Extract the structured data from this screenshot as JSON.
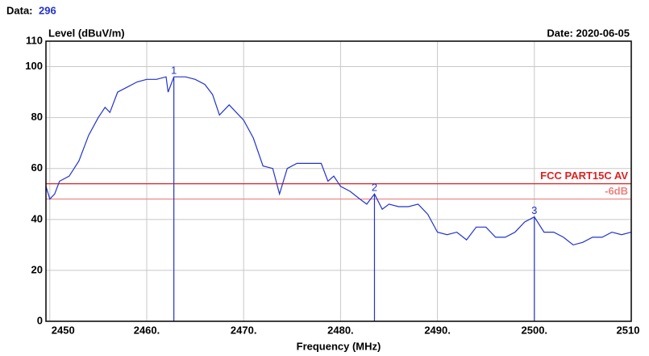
{
  "chart_data": {
    "type": "line",
    "header_label": "Data:",
    "header_value": "296",
    "ylabel": "Level (dBuV/m)",
    "date": "Date: 2020-06-05",
    "xlabel": "Frequency (MHz)",
    "xlim": [
      2449.6,
      2510
    ],
    "xticks": [
      2450,
      {
        "value": 2460,
        "label": "2460."
      },
      {
        "value": 2470,
        "label": "2470."
      },
      {
        "value": 2480,
        "label": "2480."
      },
      {
        "value": 2490,
        "label": "2490."
      },
      {
        "value": 2500,
        "label": "2500."
      },
      2510
    ],
    "ylim": [
      0,
      110
    ],
    "yticks": [
      0,
      20,
      40,
      60,
      80,
      100,
      110
    ],
    "grid": true,
    "x": [
      2449.6,
      2450,
      2450.5,
      2451,
      2452,
      2453,
      2454,
      2455,
      2455.7,
      2456.2,
      2457,
      2458,
      2459,
      2460,
      2461,
      2462,
      2462.2,
      2462.8,
      2464,
      2465,
      2466,
      2466.8,
      2467.5,
      2468.5,
      2470,
      2471,
      2472,
      2473,
      2473.7,
      2474.5,
      2475.5,
      2477,
      2478,
      2478.7,
      2479.3,
      2480,
      2481,
      2482,
      2482.7,
      2483.5,
      2484.3,
      2485,
      2486,
      2487,
      2488,
      2489,
      2490,
      2491,
      2492,
      2493,
      2494,
      2495,
      2496,
      2497,
      2498,
      2499,
      2500,
      2501,
      2502,
      2503,
      2504,
      2505,
      2506,
      2507,
      2508,
      2509,
      2510
    ],
    "series": [
      {
        "color": "#2233cc",
        "values": [
          53,
          48,
          50,
          55,
          57,
          63,
          73,
          80,
          84,
          82,
          90,
          92,
          94,
          95,
          95,
          96,
          90,
          96,
          96,
          95,
          93,
          89,
          81,
          85,
          79,
          72,
          61,
          60,
          50,
          60,
          62,
          62,
          62,
          55,
          57,
          53,
          51,
          48,
          46,
          50,
          44,
          46,
          45,
          45,
          46,
          42,
          35,
          34,
          35,
          32,
          37,
          37,
          33,
          33,
          35,
          39,
          41,
          35,
          35,
          33,
          30,
          31,
          33,
          33,
          35,
          34,
          35
        ]
      }
    ],
    "markers": [
      {
        "label": "1",
        "x": 2462.8,
        "value": 96
      },
      {
        "label": "2",
        "x": 2483.5,
        "value": 50
      },
      {
        "label": "3",
        "x": 2500,
        "value": 41
      }
    ],
    "marker_color": "#2233cc",
    "limits": [
      {
        "name": "FCC PART15C AV",
        "value": 54,
        "color": "#dd2222"
      },
      {
        "name": "-6dB",
        "value": 48,
        "color": "#f08080"
      }
    ]
  }
}
